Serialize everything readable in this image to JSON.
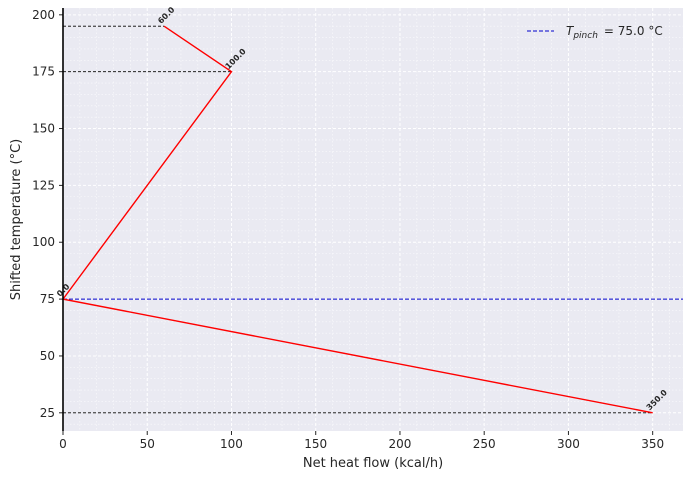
{
  "chart_data": {
    "type": "line",
    "title": "",
    "xlabel": "Net heat flow (kcal/h)",
    "ylabel": "Shifted temperature (°C)",
    "xlim": [
      0,
      368
    ],
    "ylim": [
      17,
      203
    ],
    "xticks": [
      0,
      50,
      100,
      150,
      200,
      250,
      300,
      350
    ],
    "yticks": [
      25,
      50,
      75,
      100,
      125,
      150,
      175,
      200
    ],
    "grid": true,
    "legend_position": "top-right",
    "series": [
      {
        "name": "",
        "color": "#ff0000",
        "points": [
          {
            "x": 60,
            "y": 195
          },
          {
            "x": 100,
            "y": 175
          },
          {
            "x": 0,
            "y": 75
          },
          {
            "x": 350,
            "y": 25
          }
        ],
        "labels": [
          "60.0",
          "100.0",
          "0.0",
          "350.0"
        ]
      }
    ],
    "pinch_line": {
      "y": 75,
      "color": "#0000cc",
      "legend_symbol": "T",
      "legend_subscript": "pinch",
      "legend_value": "= 75.0 °C"
    },
    "guide_lines": {
      "color": "#000000",
      "levels": [
        {
          "y": 195,
          "x_end": 60
        },
        {
          "y": 175,
          "x_end": 100
        },
        {
          "y": 25,
          "x_end": 350
        }
      ]
    }
  }
}
